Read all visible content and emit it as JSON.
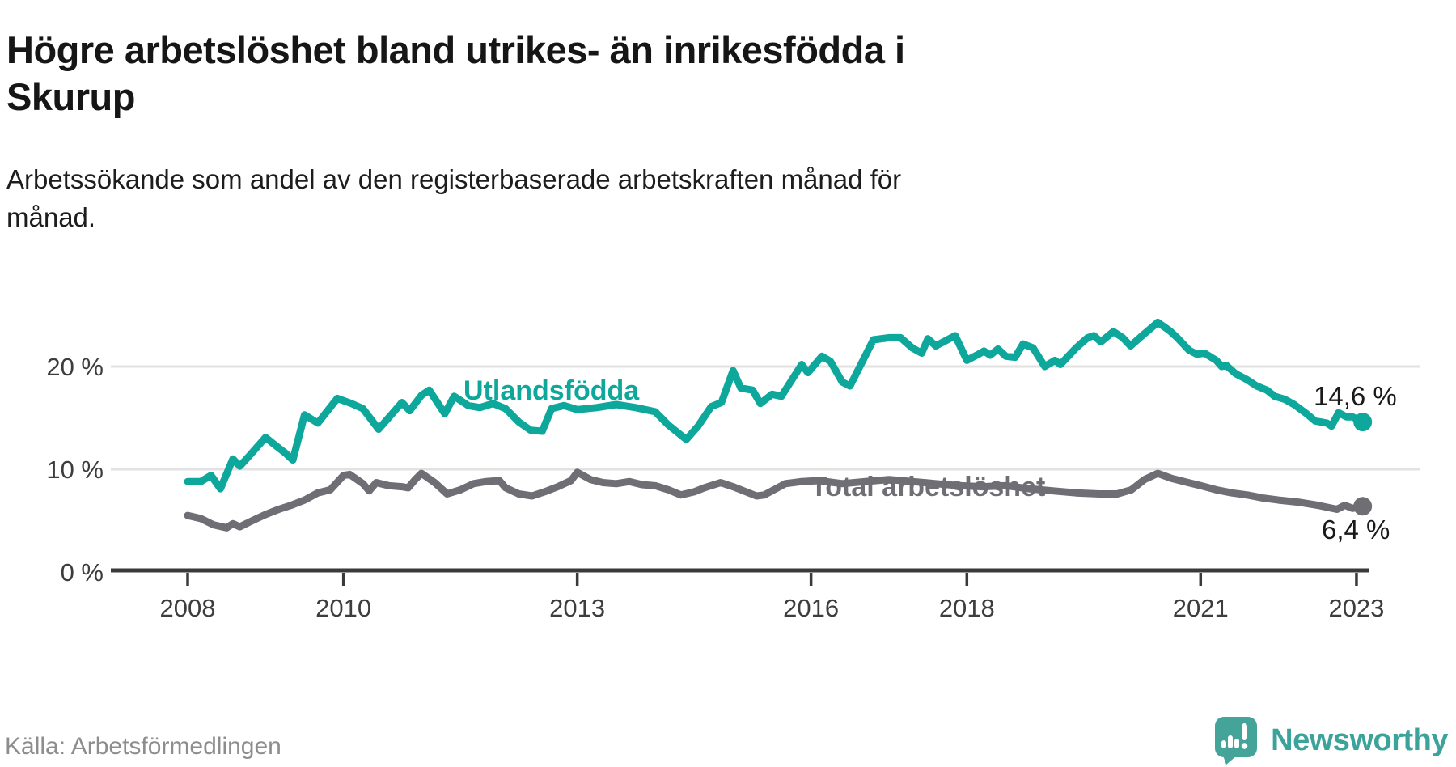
{
  "header": {
    "title": "Högre arbetslöshet bland utrikes- än inrikesfödda i\nSkurup",
    "subtitle": "Arbetssökande som andel av den registerbaserade arbetskraften månad för\nmånad."
  },
  "chart_data": {
    "type": "line",
    "title": "Högre arbetslöshet bland utrikes- än inrikesfödda i Skurup",
    "xlabel": "",
    "ylabel": "Arbetssökande som andel av den registerbaserade arbetskraften (%)",
    "x_range": [
      2008,
      2023.2
    ],
    "ylim": [
      0,
      26
    ],
    "grid": "horizontal",
    "x_ticks": [
      {
        "value": 2008,
        "label": "2008"
      },
      {
        "value": 2010,
        "label": "2010"
      },
      {
        "value": 2013,
        "label": "2013"
      },
      {
        "value": 2016,
        "label": "2016"
      },
      {
        "value": 2018,
        "label": "2018"
      },
      {
        "value": 2021,
        "label": "2021"
      },
      {
        "value": 2023,
        "label": "2023"
      }
    ],
    "y_ticks": [
      {
        "value": 0,
        "label": "0 %"
      },
      {
        "value": 10,
        "label": "10 %"
      },
      {
        "value": 20,
        "label": "20 %"
      }
    ],
    "series": [
      {
        "name": "Utlandsfödda",
        "label": "Utlandsfödda",
        "color": "#0ea79b",
        "end_label": "14,6 %",
        "end_value": 14.6,
        "points": [
          [
            2008.0,
            8.8
          ],
          [
            2008.17,
            8.8
          ],
          [
            2008.3,
            9.4
          ],
          [
            2008.42,
            8.1
          ],
          [
            2008.58,
            11.0
          ],
          [
            2008.67,
            10.3
          ],
          [
            2008.79,
            11.3
          ],
          [
            2009.0,
            13.1
          ],
          [
            2009.13,
            12.3
          ],
          [
            2009.25,
            11.6
          ],
          [
            2009.35,
            10.9
          ],
          [
            2009.5,
            15.3
          ],
          [
            2009.67,
            14.5
          ],
          [
            2009.92,
            16.9
          ],
          [
            2010.1,
            16.4
          ],
          [
            2010.25,
            15.9
          ],
          [
            2010.45,
            13.9
          ],
          [
            2010.6,
            15.2
          ],
          [
            2010.75,
            16.5
          ],
          [
            2010.85,
            15.7
          ],
          [
            2011.0,
            17.2
          ],
          [
            2011.1,
            17.7
          ],
          [
            2011.3,
            15.4
          ],
          [
            2011.42,
            17.1
          ],
          [
            2011.6,
            16.2
          ],
          [
            2011.75,
            16.0
          ],
          [
            2011.92,
            16.4
          ],
          [
            2012.08,
            15.9
          ],
          [
            2012.25,
            14.6
          ],
          [
            2012.4,
            13.8
          ],
          [
            2012.55,
            13.7
          ],
          [
            2012.67,
            15.9
          ],
          [
            2012.83,
            16.2
          ],
          [
            2013.0,
            15.8
          ],
          [
            2013.25,
            16.0
          ],
          [
            2013.5,
            16.3
          ],
          [
            2013.75,
            16.0
          ],
          [
            2014.0,
            15.6
          ],
          [
            2014.17,
            14.3
          ],
          [
            2014.4,
            12.9
          ],
          [
            2014.55,
            14.2
          ],
          [
            2014.72,
            16.1
          ],
          [
            2014.85,
            16.5
          ],
          [
            2015.0,
            19.6
          ],
          [
            2015.1,
            17.9
          ],
          [
            2015.25,
            17.7
          ],
          [
            2015.35,
            16.4
          ],
          [
            2015.5,
            17.3
          ],
          [
            2015.62,
            17.1
          ],
          [
            2015.88,
            20.2
          ],
          [
            2015.96,
            19.4
          ],
          [
            2016.14,
            21.0
          ],
          [
            2016.25,
            20.5
          ],
          [
            2016.4,
            18.5
          ],
          [
            2016.5,
            18.1
          ],
          [
            2016.8,
            22.6
          ],
          [
            2017.0,
            22.8
          ],
          [
            2017.15,
            22.8
          ],
          [
            2017.3,
            21.8
          ],
          [
            2017.42,
            21.3
          ],
          [
            2017.5,
            22.7
          ],
          [
            2017.6,
            22.0
          ],
          [
            2017.85,
            23.0
          ],
          [
            2018.0,
            20.6
          ],
          [
            2018.15,
            21.2
          ],
          [
            2018.22,
            21.5
          ],
          [
            2018.3,
            21.1
          ],
          [
            2018.4,
            21.7
          ],
          [
            2018.5,
            21.0
          ],
          [
            2018.62,
            20.9
          ],
          [
            2018.72,
            22.2
          ],
          [
            2018.85,
            21.8
          ],
          [
            2019.0,
            20.0
          ],
          [
            2019.13,
            20.6
          ],
          [
            2019.2,
            20.2
          ],
          [
            2019.4,
            21.8
          ],
          [
            2019.55,
            22.8
          ],
          [
            2019.63,
            23.0
          ],
          [
            2019.72,
            22.4
          ],
          [
            2019.88,
            23.4
          ],
          [
            2020.0,
            22.8
          ],
          [
            2020.1,
            22.0
          ],
          [
            2020.25,
            23.0
          ],
          [
            2020.45,
            24.3
          ],
          [
            2020.6,
            23.5
          ],
          [
            2020.7,
            22.8
          ],
          [
            2020.85,
            21.6
          ],
          [
            2020.95,
            21.2
          ],
          [
            2021.05,
            21.3
          ],
          [
            2021.2,
            20.6
          ],
          [
            2021.27,
            20.0
          ],
          [
            2021.33,
            20.1
          ],
          [
            2021.45,
            19.3
          ],
          [
            2021.6,
            18.7
          ],
          [
            2021.72,
            18.1
          ],
          [
            2021.85,
            17.7
          ],
          [
            2021.95,
            17.1
          ],
          [
            2022.08,
            16.8
          ],
          [
            2022.2,
            16.3
          ],
          [
            2022.36,
            15.4
          ],
          [
            2022.47,
            14.7
          ],
          [
            2022.62,
            14.5
          ],
          [
            2022.68,
            14.2
          ],
          [
            2022.77,
            15.5
          ],
          [
            2022.87,
            15.1
          ],
          [
            2022.95,
            15.1
          ],
          [
            2023.08,
            14.6
          ]
        ]
      },
      {
        "name": "Total arbetslöshet",
        "label": "Total arbetslöshet",
        "color": "#6f6e74",
        "end_label": "6,4 %",
        "end_value": 6.4,
        "points": [
          [
            2008.0,
            5.5
          ],
          [
            2008.17,
            5.2
          ],
          [
            2008.33,
            4.6
          ],
          [
            2008.5,
            4.3
          ],
          [
            2008.58,
            4.7
          ],
          [
            2008.67,
            4.4
          ],
          [
            2008.83,
            5.0
          ],
          [
            2009.0,
            5.6
          ],
          [
            2009.17,
            6.1
          ],
          [
            2009.33,
            6.5
          ],
          [
            2009.5,
            7.0
          ],
          [
            2009.67,
            7.7
          ],
          [
            2009.83,
            8.0
          ],
          [
            2010.0,
            9.4
          ],
          [
            2010.08,
            9.5
          ],
          [
            2010.25,
            8.6
          ],
          [
            2010.33,
            7.9
          ],
          [
            2010.42,
            8.7
          ],
          [
            2010.58,
            8.4
          ],
          [
            2010.75,
            8.3
          ],
          [
            2010.83,
            8.2
          ],
          [
            2010.92,
            9.0
          ],
          [
            2011.0,
            9.6
          ],
          [
            2011.17,
            8.7
          ],
          [
            2011.33,
            7.6
          ],
          [
            2011.5,
            8.0
          ],
          [
            2011.67,
            8.6
          ],
          [
            2011.83,
            8.8
          ],
          [
            2012.0,
            8.9
          ],
          [
            2012.08,
            8.2
          ],
          [
            2012.25,
            7.6
          ],
          [
            2012.42,
            7.4
          ],
          [
            2012.58,
            7.8
          ],
          [
            2012.75,
            8.3
          ],
          [
            2012.92,
            8.9
          ],
          [
            2013.0,
            9.7
          ],
          [
            2013.17,
            9.0
          ],
          [
            2013.33,
            8.7
          ],
          [
            2013.5,
            8.6
          ],
          [
            2013.67,
            8.8
          ],
          [
            2013.83,
            8.5
          ],
          [
            2014.0,
            8.4
          ],
          [
            2014.17,
            8.0
          ],
          [
            2014.33,
            7.5
          ],
          [
            2014.5,
            7.8
          ],
          [
            2014.63,
            8.2
          ],
          [
            2014.84,
            8.7
          ],
          [
            2015.0,
            8.3
          ],
          [
            2015.3,
            7.4
          ],
          [
            2015.4,
            7.5
          ],
          [
            2015.67,
            8.6
          ],
          [
            2015.88,
            8.8
          ],
          [
            2016.1,
            8.9
          ],
          [
            2016.4,
            8.6
          ],
          [
            2016.7,
            8.8
          ],
          [
            2017.0,
            9.0
          ],
          [
            2017.3,
            8.8
          ],
          [
            2017.6,
            8.6
          ],
          [
            2017.9,
            8.4
          ],
          [
            2018.2,
            8.3
          ],
          [
            2018.5,
            8.4
          ],
          [
            2018.8,
            8.1
          ],
          [
            2019.1,
            7.9
          ],
          [
            2019.4,
            7.7
          ],
          [
            2019.7,
            7.6
          ],
          [
            2019.93,
            7.6
          ],
          [
            2020.11,
            8.0
          ],
          [
            2020.28,
            9.0
          ],
          [
            2020.45,
            9.6
          ],
          [
            2020.63,
            9.1
          ],
          [
            2020.84,
            8.7
          ],
          [
            2021.0,
            8.4
          ],
          [
            2021.2,
            8.0
          ],
          [
            2021.4,
            7.7
          ],
          [
            2021.6,
            7.5
          ],
          [
            2021.8,
            7.2
          ],
          [
            2022.0,
            7.0
          ],
          [
            2022.25,
            6.8
          ],
          [
            2022.5,
            6.5
          ],
          [
            2022.75,
            6.1
          ],
          [
            2022.85,
            6.5
          ],
          [
            2022.95,
            6.2
          ],
          [
            2023.08,
            6.4
          ]
        ]
      }
    ],
    "legend_position": "inline-labels"
  },
  "footer": {
    "source": "Källa: Arbetsförmedlingen",
    "logo_text": "Newsworthy"
  },
  "colors": {
    "accent_teal": "#0ea79b",
    "series_gray": "#6f6e74",
    "logo_teal": "#45a49a",
    "axis": "#3a3a3a",
    "gridline": "#e2e2e2"
  }
}
